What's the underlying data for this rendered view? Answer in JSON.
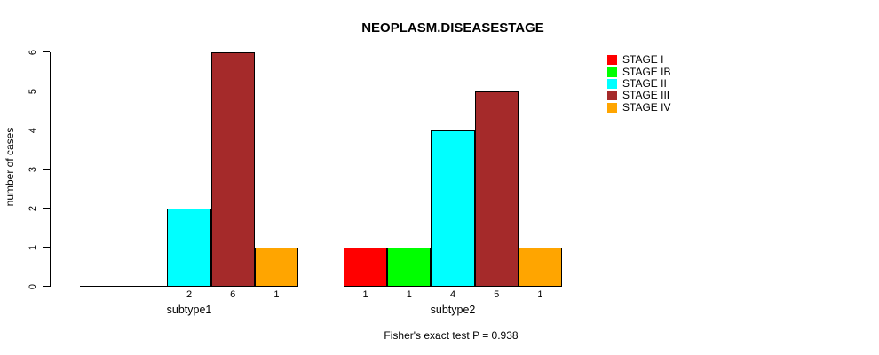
{
  "chart_data": {
    "type": "bar",
    "title": "NEOPLASM.DISEASESTAGE",
    "ylabel": "number of cases",
    "caption": "Fisher's exact test P = 0.938",
    "ylim": [
      0,
      6
    ],
    "yticks": [
      0,
      1,
      2,
      3,
      4,
      5,
      6
    ],
    "grid": false,
    "legend_position": "right-outside",
    "categories": [
      "subtype1",
      "subtype2"
    ],
    "series": [
      {
        "name": "STAGE I",
        "color": "#FF0000",
        "values": [
          0,
          1
        ]
      },
      {
        "name": "STAGE IB",
        "color": "#00FF00",
        "values": [
          0,
          1
        ]
      },
      {
        "name": "STAGE II",
        "color": "#00FFFF",
        "values": [
          2,
          4
        ]
      },
      {
        "name": "STAGE III",
        "color": "#A52A2A",
        "values": [
          6,
          5
        ]
      },
      {
        "name": "STAGE IV",
        "color": "#FFA500",
        "values": [
          1,
          1
        ]
      }
    ],
    "bar_value_labels": {
      "subtype1": [
        "2",
        "6",
        "1"
      ],
      "subtype2": [
        "1",
        "1",
        "4",
        "5",
        "1"
      ]
    }
  }
}
